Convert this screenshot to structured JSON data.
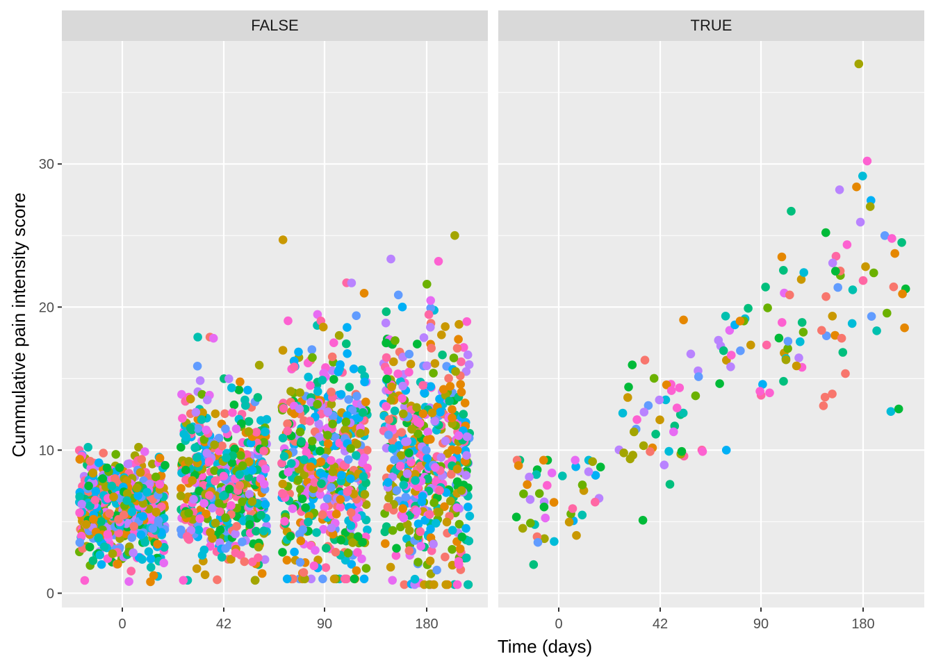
{
  "chart_data": {
    "type": "scatter",
    "jitter": true,
    "xlabel": "Time (days)",
    "ylabel": "Cummulative pain intensity score",
    "categories": [
      "0",
      "42",
      "90",
      "180"
    ],
    "ylim": [
      -1.0,
      38.6
    ],
    "yticks": [
      0,
      10,
      20,
      30
    ],
    "grid": true,
    "legend": "none",
    "colors": [
      "#F8766D",
      "#E58700",
      "#C99800",
      "#A3A500",
      "#6BB100",
      "#00BA38",
      "#00BF7D",
      "#00C0AF",
      "#00BCD8",
      "#00B0F6",
      "#619CFF",
      "#B983FF",
      "#E76BF3",
      "#FD61D1",
      "#FF67A4"
    ],
    "panels": [
      {
        "label": "FALSE",
        "groups": [
          {
            "category": "0",
            "n": 560,
            "mean": 6.0,
            "sd": 1.9,
            "min": 0.8,
            "max": 10.2
          },
          {
            "category": "42",
            "n": 500,
            "mean": 8.0,
            "sd": 3.0,
            "min": 0.9,
            "max": 17.9
          },
          {
            "category": "90",
            "n": 500,
            "mean": 9.0,
            "sd": 4.5,
            "min": 1.0,
            "max": 24.7
          },
          {
            "category": "180",
            "n": 500,
            "mean": 9.5,
            "sd": 4.8,
            "min": 0.6,
            "max": 25.0
          }
        ]
      },
      {
        "label": "TRUE",
        "groups": [
          {
            "category": "0",
            "n": 45,
            "mean": 6.6,
            "sd": 1.6,
            "min": 2.0,
            "max": 9.3
          },
          {
            "category": "42",
            "n": 45,
            "mean": 12.0,
            "sd": 2.7,
            "min": 5.1,
            "max": 19.1
          },
          {
            "category": "90",
            "n": 45,
            "mean": 18.0,
            "sd": 3.4,
            "min": 10.0,
            "max": 26.7
          },
          {
            "category": "180",
            "n": 45,
            "mean": 23.0,
            "sd": 4.6,
            "min": 12.7,
            "max": 37.0
          }
        ]
      }
    ]
  }
}
